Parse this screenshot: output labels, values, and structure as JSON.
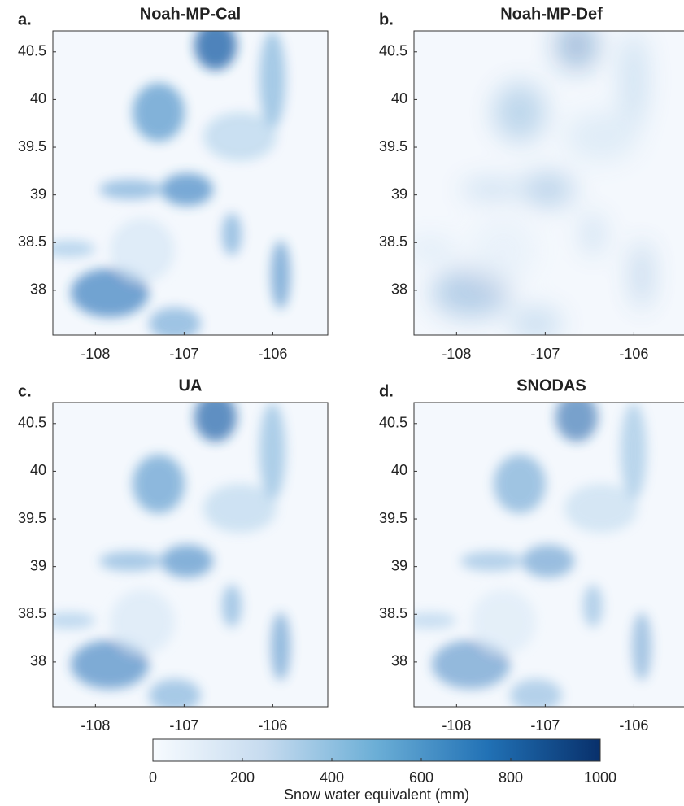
{
  "chart_data": [
    {
      "type": "map",
      "label": "a.",
      "title": "Noah-MP-Cal",
      "xlim": [
        -108.48,
        -105.38
      ],
      "ylim": [
        37.53,
        40.72
      ],
      "xticks": [
        -108,
        -107,
        -106
      ],
      "yticks": [
        38,
        38.5,
        39,
        39.5,
        40,
        40.5
      ]
    },
    {
      "type": "map",
      "label": "b.",
      "title": "Noah-MP-Def",
      "xlim": [
        -108.48,
        -105.38
      ],
      "ylim": [
        37.53,
        40.72
      ],
      "xticks": [
        -108,
        -107,
        -106
      ],
      "yticks": [
        38,
        38.5,
        39,
        39.5,
        40,
        40.5
      ]
    },
    {
      "type": "map",
      "label": "c.",
      "title": "UA",
      "xlim": [
        -108.48,
        -105.38
      ],
      "ylim": [
        37.53,
        40.72
      ],
      "xticks": [
        -108,
        -107,
        -106
      ],
      "yticks": [
        38,
        38.5,
        39,
        39.5,
        40,
        40.5
      ]
    },
    {
      "type": "map",
      "label": "d.",
      "title": "SNODAS",
      "xlim": [
        -108.48,
        -105.38
      ],
      "ylim": [
        37.53,
        40.72
      ],
      "xticks": [
        -108,
        -107,
        -106
      ],
      "yticks": [
        38,
        38.5,
        39,
        39.5,
        40,
        40.5
      ]
    }
  ],
  "colorbar": {
    "label": "Snow water equivalent (mm)",
    "lim": [
      0,
      1000
    ],
    "ticks": [
      0,
      200,
      400,
      600,
      800,
      1000
    ],
    "colors": [
      "#f7fbff",
      "#c6dbef",
      "#6baed6",
      "#2171b5",
      "#08306b"
    ]
  }
}
